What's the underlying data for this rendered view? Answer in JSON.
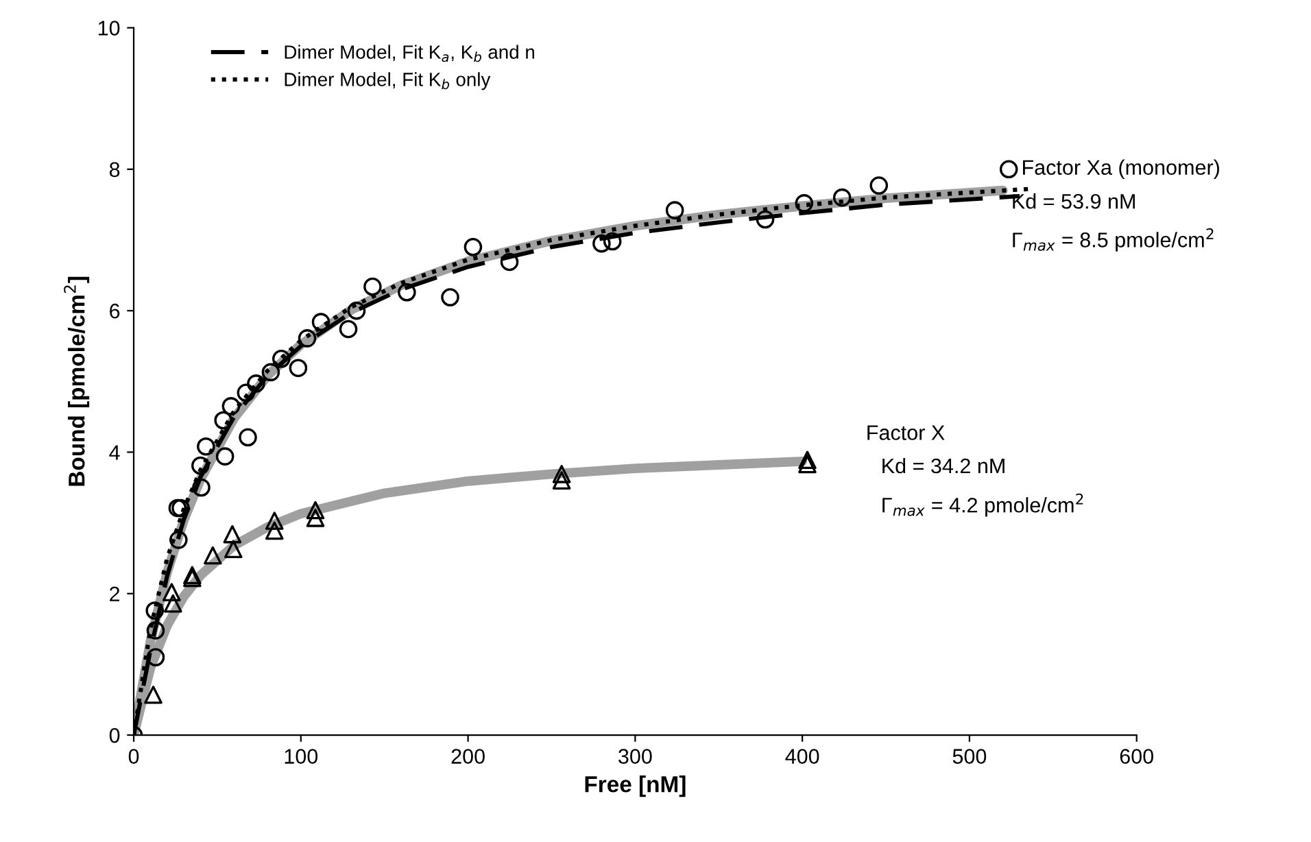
{
  "chart_data": {
    "type": "scatter",
    "xlabel": "Free [nM]",
    "ylabel": "Bound [pmole/cm$^{2}$]",
    "xlim": [
      0,
      600
    ],
    "xticks": [
      0,
      100,
      200,
      300,
      400,
      500,
      600
    ],
    "ylim": [
      0,
      10
    ],
    "yticks": [
      0,
      2,
      4,
      6,
      8,
      10
    ],
    "grid": false,
    "legend": "top left",
    "series": [
      {
        "type": "line",
        "color": "#a0a0a0",
        "line_style": "solid",
        "x": [
          0,
          10,
          20,
          30,
          40,
          60,
          80,
          100,
          130,
          160,
          200,
          250,
          300,
          350,
          400,
          450,
          520
        ],
        "values": [
          0,
          1.33,
          2.3,
          3.04,
          3.62,
          4.48,
          5.08,
          5.52,
          6.01,
          6.36,
          6.7,
          6.99,
          7.2,
          7.36,
          7.48,
          7.59,
          7.7
        ]
      },
      {
        "type": "line",
        "color": "#a0a0a0",
        "line_style": "solid",
        "x": [
          0,
          10,
          20,
          30,
          40,
          60,
          80,
          100,
          150,
          200,
          250,
          300,
          350,
          400
        ],
        "values": [
          0,
          0.95,
          1.55,
          1.96,
          2.26,
          2.68,
          2.94,
          3.13,
          3.42,
          3.59,
          3.69,
          3.77,
          3.82,
          3.87
        ]
      },
      {
        "type": "line",
        "name": "Dimer Model, Fit K$_{a}$, K$_{b}$ and n",
        "color": "#000000",
        "line_style": "dashed",
        "x": [
          0,
          10,
          20,
          30,
          40,
          60,
          80,
          100,
          130,
          160,
          200,
          250,
          300,
          350,
          400,
          450,
          530
        ],
        "values": [
          0,
          1.2,
          2.25,
          3.05,
          3.65,
          4.5,
          5.08,
          5.5,
          5.97,
          6.3,
          6.62,
          6.9,
          7.1,
          7.25,
          7.38,
          7.5,
          7.62
        ]
      },
      {
        "type": "line",
        "name": "Dimer Model, Fit K$_{b}$ only",
        "color": "#000000",
        "line_style": "dotted",
        "x": [
          0,
          10,
          20,
          30,
          40,
          60,
          80,
          100,
          130,
          160,
          200,
          250,
          300,
          350,
          400,
          450,
          535
        ],
        "values": [
          0,
          1.5,
          2.5,
          3.2,
          3.75,
          4.58,
          5.15,
          5.58,
          6.05,
          6.39,
          6.72,
          7.0,
          7.2,
          7.36,
          7.49,
          7.6,
          7.72
        ]
      },
      {
        "marker": "circle",
        "color": "#000000",
        "x": [
          0,
          13.1,
          13.1,
          12.6,
          26.8,
          26.2,
          28.1,
          40.4,
          39.9,
          43.2,
          54.6,
          53.6,
          58.2,
          68.3,
          67.2,
          73.2,
          82.0,
          88.3,
          98.4,
          103.8,
          112.0,
          128.4,
          133.3,
          142.9,
          163.4,
          189.3,
          203.0,
          224.8,
          279.9,
          286.4,
          323.7,
          377.8,
          401.1,
          423.8,
          445.8,
          523.5
        ],
        "values": [
          0,
          1.1,
          1.48,
          1.76,
          2.76,
          3.21,
          3.21,
          3.5,
          3.81,
          4.08,
          3.94,
          4.45,
          4.65,
          4.21,
          4.84,
          4.97,
          5.13,
          5.32,
          5.19,
          5.61,
          5.84,
          5.74,
          6.0,
          6.34,
          6.26,
          6.19,
          6.9,
          6.69,
          6.95,
          6.98,
          7.42,
          7.29,
          7.52,
          7.6,
          7.77,
          8.0
        ]
      },
      {
        "marker": "triangle",
        "color": "#000000",
        "x": [
          11.7,
          22.7,
          23.5,
          35,
          35,
          47.3,
          59,
          59.6,
          84.2,
          84.2,
          108.7,
          108.7,
          256,
          256,
          403,
          403
        ],
        "values": [
          0.57,
          2.02,
          1.86,
          2.26,
          2.22,
          2.54,
          2.84,
          2.63,
          3.03,
          2.89,
          3.18,
          3.07,
          3.69,
          3.6,
          3.89,
          3.83
        ]
      }
    ],
    "annotations": [
      "Factor Xa (monomer)",
      "Kd = 53.9 nM",
      "Γ$_{max}$ = 8.5 pmole/cm$^{2}$",
      "Factor X",
      "Kd = 34.2 nM",
      "Γ$_{max}$ = 4.2 pmole/cm$^{2}$"
    ]
  }
}
